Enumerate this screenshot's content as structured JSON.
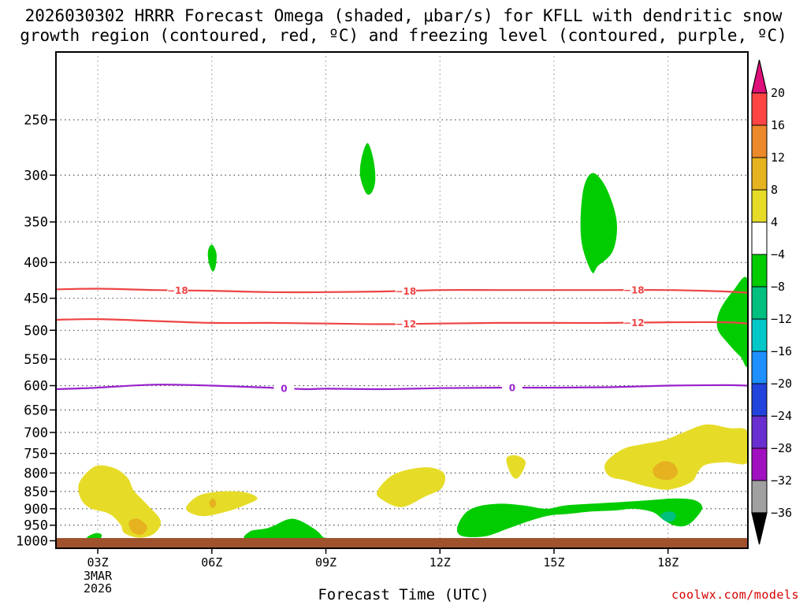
{
  "chart_data": {
    "type": "time-height contour",
    "title_line1": "2026030302 HRRR Forecast Omega (shaded, μbar/s) for KFLL with dendritic snow",
    "title_line2": "growth region (contoured, red, ºC) and freezing level (contoured, purple, ºC)",
    "xlabel": "Forecast Time (UTC)",
    "x_range_hours": [
      1.9,
      20.1
    ],
    "x_ticks": [
      {
        "hour": 3,
        "label": "03Z",
        "sub": [
          "3MAR",
          "2026"
        ]
      },
      {
        "hour": 6,
        "label": "06Z",
        "sub": []
      },
      {
        "hour": 9,
        "label": "09Z",
        "sub": []
      },
      {
        "hour": 12,
        "label": "12Z",
        "sub": []
      },
      {
        "hour": 15,
        "label": "15Z",
        "sub": []
      },
      {
        "hour": 18,
        "label": "18Z",
        "sub": []
      }
    ],
    "y_range_mb": [
      1025,
      200
    ],
    "y_ticks": [
      250,
      300,
      350,
      400,
      450,
      500,
      550,
      600,
      650,
      700,
      750,
      800,
      850,
      900,
      950,
      1000
    ],
    "colorbar": {
      "levels": [
        20,
        16,
        12,
        8,
        4,
        -4,
        -8,
        -12,
        -16,
        -20,
        -24,
        -28,
        -32,
        -36
      ],
      "colors": [
        "#ff4444",
        "#ec8a2b",
        "#e6b21f",
        "#e6dc28",
        "#ffffff",
        "#00cc00",
        "#00c080",
        "#00c8c8",
        "#1e90ff",
        "#2244dd",
        "#6a2fd0",
        "#a010c0",
        "#a0a0a0"
      ],
      "top_arrow_color": "#e0107a",
      "bottom_arrow_color": "#000000"
    },
    "contours": [
      {
        "name": "temp -18C",
        "value": -18,
        "label": "-18",
        "color": "#ee4444",
        "points": [
          [
            1.9,
            437
          ],
          [
            3,
            436
          ],
          [
            4.5,
            438
          ],
          [
            6,
            439
          ],
          [
            7.5,
            441
          ],
          [
            9,
            441
          ],
          [
            10.5,
            440
          ],
          [
            12,
            438
          ],
          [
            13.5,
            438
          ],
          [
            15,
            438
          ],
          [
            16.5,
            438
          ],
          [
            18,
            438
          ],
          [
            19.5,
            440
          ],
          [
            20.1,
            442
          ]
        ],
        "label_hours": [
          5.1,
          11.1,
          17.1
        ]
      },
      {
        "name": "temp -12C",
        "value": -12,
        "label": "-12",
        "color": "#ee4444",
        "points": [
          [
            1.9,
            483
          ],
          [
            3,
            482
          ],
          [
            4.5,
            485
          ],
          [
            6,
            488
          ],
          [
            7.5,
            488
          ],
          [
            9,
            489
          ],
          [
            10.5,
            490
          ],
          [
            12,
            489
          ],
          [
            13.5,
            488
          ],
          [
            15,
            488
          ],
          [
            16.5,
            488
          ],
          [
            18,
            487
          ],
          [
            19.5,
            487
          ],
          [
            20.1,
            489
          ]
        ],
        "label_hours": [
          11.1,
          17.1
        ]
      },
      {
        "name": "freezing level 0C",
        "value": 0,
        "label": "0",
        "color": "#9922cc",
        "points": [
          [
            1.9,
            607
          ],
          [
            3,
            604
          ],
          [
            4.5,
            598
          ],
          [
            6,
            600
          ],
          [
            7.5,
            604
          ],
          [
            8.5,
            607
          ],
          [
            9,
            606
          ],
          [
            10.5,
            607
          ],
          [
            12,
            605
          ],
          [
            13.5,
            604
          ],
          [
            15,
            604
          ],
          [
            16.5,
            603
          ],
          [
            18,
            600
          ],
          [
            19.5,
            599
          ],
          [
            20.1,
            600
          ]
        ],
        "label_hours": [
          7.9,
          13.9
        ]
      }
    ],
    "shaded_regions": [
      {
        "name": "green upper 10Z",
        "omega_band": "-4 to -8",
        "color": "#00cc00",
        "points": [
          [
            10.1,
            270
          ],
          [
            10.25,
            285
          ],
          [
            10.3,
            305
          ],
          [
            10.2,
            318
          ],
          [
            10.05,
            318
          ],
          [
            9.9,
            300
          ],
          [
            9.95,
            282
          ]
        ]
      },
      {
        "name": "green 06Z",
        "omega_band": "-4 to -8",
        "color": "#00cc00",
        "points": [
          [
            6.0,
            377
          ],
          [
            6.12,
            388
          ],
          [
            6.1,
            405
          ],
          [
            6.02,
            412
          ],
          [
            5.92,
            400
          ],
          [
            5.9,
            385
          ]
        ]
      },
      {
        "name": "green 16Z",
        "omega_band": "-4 to -8",
        "color": "#00cc00",
        "points": [
          [
            16.05,
            298
          ],
          [
            16.4,
            315
          ],
          [
            16.65,
            350
          ],
          [
            16.55,
            385
          ],
          [
            16.15,
            405
          ],
          [
            16.0,
            413
          ],
          [
            15.75,
            380
          ],
          [
            15.7,
            345
          ],
          [
            15.8,
            310
          ]
        ]
      },
      {
        "name": "green right edge",
        "omega_band": "-4 to -8",
        "color": "#00cc00",
        "points": [
          [
            20.1,
            425
          ],
          [
            19.7,
            440
          ],
          [
            19.35,
            470
          ],
          [
            19.3,
            497
          ],
          [
            19.55,
            520
          ],
          [
            19.9,
            545
          ],
          [
            20.1,
            555
          ]
        ]
      },
      {
        "name": "green near 03Z sfc",
        "omega_band": "-4 to -8",
        "color": "#00cc00",
        "points": [
          [
            2.75,
            985
          ],
          [
            2.95,
            975
          ],
          [
            3.1,
            980
          ],
          [
            3.05,
            995
          ],
          [
            2.85,
            1000
          ],
          [
            2.72,
            993
          ]
        ]
      },
      {
        "name": "green 08Z sfc",
        "omega_band": "-4 to -8",
        "color": "#00cc00",
        "points": [
          [
            7.0,
            970
          ],
          [
            7.5,
            958
          ],
          [
            8.0,
            932
          ],
          [
            8.3,
            935
          ],
          [
            8.7,
            962
          ],
          [
            8.9,
            985
          ],
          [
            8.9,
            1000
          ],
          [
            7.0,
            1000
          ]
        ]
      },
      {
        "name": "green 13-19Z low level",
        "omega_band": "-4 to -8",
        "color": "#00cc00",
        "points": [
          [
            12.45,
            960
          ],
          [
            12.65,
            915
          ],
          [
            13.0,
            893
          ],
          [
            13.6,
            885
          ],
          [
            14.2,
            890
          ],
          [
            14.8,
            900
          ],
          [
            15.3,
            890
          ],
          [
            16.0,
            885
          ],
          [
            16.8,
            880
          ],
          [
            17.5,
            875
          ],
          [
            18.2,
            870
          ],
          [
            18.7,
            875
          ],
          [
            18.9,
            895
          ],
          [
            18.75,
            925
          ],
          [
            18.5,
            950
          ],
          [
            18.2,
            952
          ],
          [
            17.9,
            935
          ],
          [
            17.6,
            910
          ],
          [
            17.1,
            900
          ],
          [
            16.6,
            905
          ],
          [
            16.0,
            908
          ],
          [
            15.4,
            915
          ],
          [
            14.9,
            920
          ],
          [
            14.4,
            935
          ],
          [
            13.8,
            960
          ],
          [
            13.2,
            985
          ],
          [
            12.6,
            985
          ]
        ]
      },
      {
        "name": "teal spot 18Z",
        "omega_band": "-8 to -12",
        "color": "#00c080",
        "points": [
          [
            17.8,
            920
          ],
          [
            18.0,
            908
          ],
          [
            18.2,
            915
          ],
          [
            18.15,
            935
          ],
          [
            17.95,
            938
          ]
        ]
      },
      {
        "name": "yellow 03Z",
        "omega_band": "4 to 8",
        "color": "#e6dc28",
        "points": [
          [
            2.5,
            830
          ],
          [
            2.75,
            795
          ],
          [
            3.05,
            780
          ],
          [
            3.5,
            790
          ],
          [
            3.8,
            815
          ],
          [
            3.95,
            848
          ],
          [
            4.3,
            888
          ],
          [
            4.65,
            935
          ],
          [
            4.5,
            975
          ],
          [
            4.1,
            990
          ],
          [
            3.7,
            975
          ],
          [
            3.6,
            948
          ],
          [
            3.3,
            915
          ],
          [
            2.8,
            898
          ],
          [
            2.55,
            870
          ]
        ]
      },
      {
        "name": "orange 03-04Z",
        "omega_band": "8 to 12",
        "color": "#e6b21f",
        "points": [
          [
            3.82,
            940
          ],
          [
            4.05,
            930
          ],
          [
            4.3,
            955
          ],
          [
            4.15,
            980
          ],
          [
            3.9,
            970
          ]
        ]
      },
      {
        "name": "yellow 06Z",
        "omega_band": "4 to 8",
        "color": "#e6dc28",
        "points": [
          [
            5.35,
            890
          ],
          [
            5.7,
            860
          ],
          [
            6.3,
            850
          ],
          [
            6.9,
            853
          ],
          [
            7.2,
            870
          ],
          [
            6.9,
            888
          ],
          [
            6.4,
            908
          ],
          [
            5.8,
            922
          ],
          [
            5.4,
            910
          ]
        ]
      },
      {
        "name": "orange spot 06Z",
        "omega_band": "8 to 12",
        "color": "#e6b21f",
        "points": [
          [
            5.93,
            883
          ],
          [
            6.03,
            870
          ],
          [
            6.12,
            885
          ],
          [
            6.02,
            898
          ]
        ]
      },
      {
        "name": "yellow 11Z",
        "omega_band": "4 to 8",
        "color": "#e6dc28",
        "points": [
          [
            10.35,
            850
          ],
          [
            10.8,
            803
          ],
          [
            11.6,
            785
          ],
          [
            12.1,
            800
          ],
          [
            12.05,
            840
          ],
          [
            11.6,
            865
          ],
          [
            11.0,
            895
          ],
          [
            10.5,
            875
          ]
        ]
      },
      {
        "name": "yellow 14Z",
        "omega_band": "4 to 8",
        "color": "#e6dc28",
        "points": [
          [
            13.75,
            762
          ],
          [
            14.0,
            755
          ],
          [
            14.25,
            770
          ],
          [
            14.15,
            800
          ],
          [
            14.0,
            815
          ],
          [
            13.85,
            800
          ]
        ]
      },
      {
        "name": "yellow 17-20Z",
        "omega_band": "4 to 8",
        "color": "#e6dc28",
        "points": [
          [
            16.35,
            775
          ],
          [
            16.8,
            740
          ],
          [
            17.3,
            728
          ],
          [
            17.9,
            718
          ],
          [
            18.4,
            700
          ],
          [
            19.0,
            682
          ],
          [
            19.6,
            690
          ],
          [
            20.1,
            698
          ],
          [
            20.1,
            772
          ],
          [
            19.5,
            772
          ],
          [
            19.0,
            778
          ],
          [
            18.8,
            795
          ],
          [
            18.6,
            825
          ],
          [
            18.0,
            845
          ],
          [
            17.4,
            835
          ],
          [
            16.9,
            820
          ],
          [
            16.45,
            808
          ]
        ]
      },
      {
        "name": "orange 18Z",
        "omega_band": "8 to 12",
        "color": "#e6b21f",
        "points": [
          [
            17.6,
            790
          ],
          [
            17.85,
            770
          ],
          [
            18.15,
            776
          ],
          [
            18.25,
            800
          ],
          [
            18.05,
            818
          ],
          [
            17.7,
            812
          ]
        ]
      }
    ],
    "surface_bar_color": "#a0522d"
  },
  "credit": "coolwx.com/models"
}
